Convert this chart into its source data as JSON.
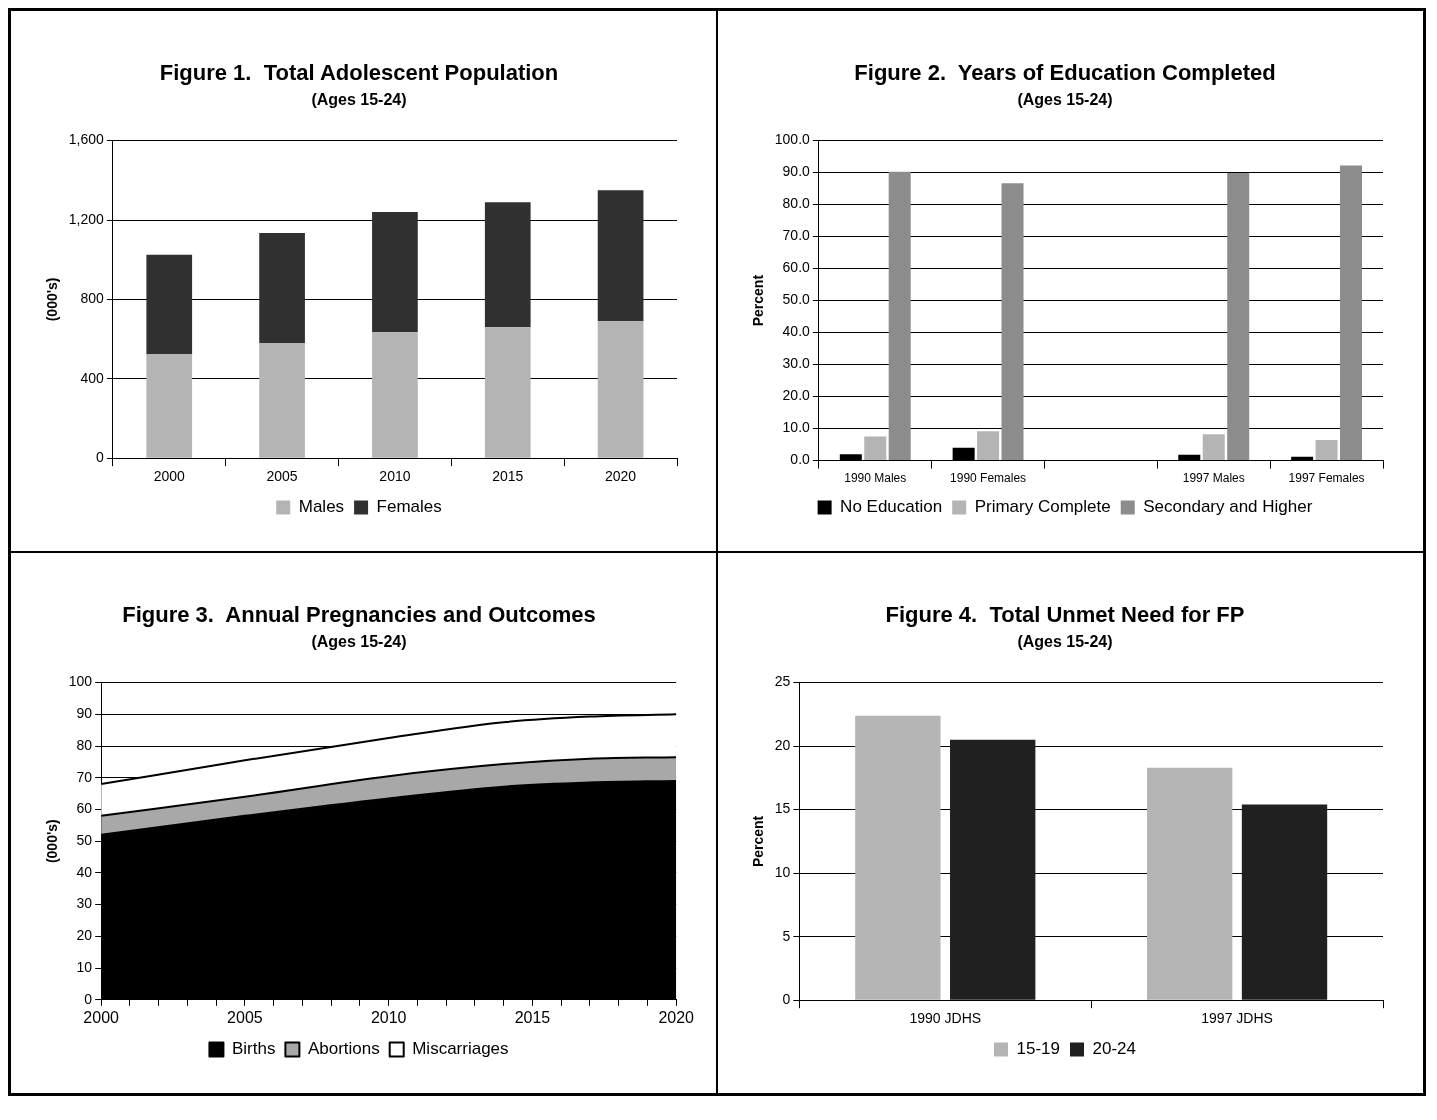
{
  "chart_data": [
    {
      "type": "bar",
      "title": "Figure 1.  Total Adolescent Population",
      "subtitle": "(Ages 15-24)",
      "ylabel": "(000's)",
      "stacked": true,
      "categories": [
        "2000",
        "2005",
        "2010",
        "2015",
        "2020"
      ],
      "series": [
        {
          "name": "Males",
          "color": "#b4b4b4",
          "values": [
            525,
            580,
            635,
            660,
            690
          ]
        },
        {
          "name": "Females",
          "color": "#303030",
          "values": [
            500,
            555,
            605,
            630,
            660
          ]
        }
      ],
      "ylim": [
        0,
        1600
      ],
      "yticks": [
        0,
        400,
        800,
        {
          "value": 1200,
          "label": "1,200"
        },
        {
          "value": 1600,
          "label": "1,600"
        }
      ],
      "grid": "y",
      "legend": "bottom"
    },
    {
      "type": "bar",
      "title": "Figure 2.  Years of Education Completed",
      "subtitle": "(Ages 15-24)",
      "ylabel": "Percent",
      "categories": [
        "1990 Males",
        "1990 Females",
        null,
        "1997 Males",
        "1997 Females"
      ],
      "series": [
        {
          "name": "No Education",
          "color": "#000000",
          "values": [
            2.0,
            4.0,
            null,
            1.8,
            1.2
          ]
        },
        {
          "name": "Primary Complete",
          "color": "#b4b4b4",
          "values": [
            7.5,
            9.2,
            null,
            8.2,
            6.4
          ]
        },
        {
          "name": "Secondary and Higher",
          "color": "#8c8c8c",
          "values": [
            90.3,
            86.7,
            null,
            89.9,
            92.2
          ]
        }
      ],
      "ylim": [
        0,
        100
      ],
      "yticks": [
        {
          "value": 0,
          "label": "0.0"
        },
        {
          "value": 10,
          "label": "10.0"
        },
        {
          "value": 20,
          "label": "20.0"
        },
        {
          "value": 30,
          "label": "30.0"
        },
        {
          "value": 40,
          "label": "40.0"
        },
        {
          "value": 50,
          "label": "50.0"
        },
        {
          "value": 60,
          "label": "60.0"
        },
        {
          "value": 70,
          "label": "70.0"
        },
        {
          "value": 80,
          "label": "80.0"
        },
        {
          "value": 90,
          "label": "90.0"
        },
        {
          "value": 100,
          "label": "100.0"
        }
      ],
      "grid": "y",
      "legend": "bottom"
    },
    {
      "type": "area",
      "title": "Figure 3.  Annual Pregnancies and Outcomes",
      "subtitle": "(Ages 15-24)",
      "ylabel": "(000's)",
      "stacked": true,
      "x": [
        2000,
        2005,
        2010,
        2014,
        2017,
        2020
      ],
      "series": [
        {
          "name": "Births",
          "color": "#000000",
          "values": [
            52,
            58,
            63.5,
            67.2,
            68.5,
            69
          ]
        },
        {
          "name": "Abortions",
          "color": "#a8a8a8",
          "values": [
            6,
            6,
            7,
            7.1,
            7.5,
            7.5
          ]
        },
        {
          "name": "Miscarriages",
          "color": "#ffffff",
          "values": [
            10,
            11.5,
            12,
            13.2,
            13.3,
            13.5
          ]
        }
      ],
      "xlim": [
        2000,
        2020
      ],
      "xticks": [
        2000,
        {
          "value": 2001,
          "label": null
        },
        {
          "value": 2002,
          "label": null
        },
        {
          "value": 2003,
          "label": null
        },
        {
          "value": 2004,
          "label": null
        },
        2005,
        {
          "value": 2006,
          "label": null
        },
        {
          "value": 2007,
          "label": null
        },
        {
          "value": 2008,
          "label": null
        },
        {
          "value": 2009,
          "label": null
        },
        2010,
        {
          "value": 2011,
          "label": null
        },
        {
          "value": 2012,
          "label": null
        },
        {
          "value": 2013,
          "label": null
        },
        {
          "value": 2014,
          "label": null
        },
        2015,
        {
          "value": 2016,
          "label": null
        },
        {
          "value": 2017,
          "label": null
        },
        {
          "value": 2018,
          "label": null
        },
        {
          "value": 2019,
          "label": null
        },
        2020
      ],
      "ylim": [
        0,
        100
      ],
      "yticks": [
        0,
        10,
        20,
        30,
        40,
        50,
        60,
        70,
        80,
        90,
        100
      ],
      "grid": "y",
      "legend": "bottom"
    },
    {
      "type": "bar",
      "title": "Figure 4.  Total Unmet Need for FP",
      "subtitle": "(Ages 15-24)",
      "ylabel": "Percent",
      "categories": [
        "1990 JDHS",
        "1997 JDHS"
      ],
      "series": [
        {
          "name": "15-19",
          "color": "#b4b4b4",
          "values": [
            22.4,
            18.3
          ]
        },
        {
          "name": "20-24",
          "color": "#202020",
          "values": [
            20.5,
            15.4
          ]
        }
      ],
      "ylim": [
        0,
        25
      ],
      "yticks": [
        0,
        5,
        10,
        15,
        20,
        25
      ],
      "grid": "y",
      "legend": "bottom"
    }
  ]
}
